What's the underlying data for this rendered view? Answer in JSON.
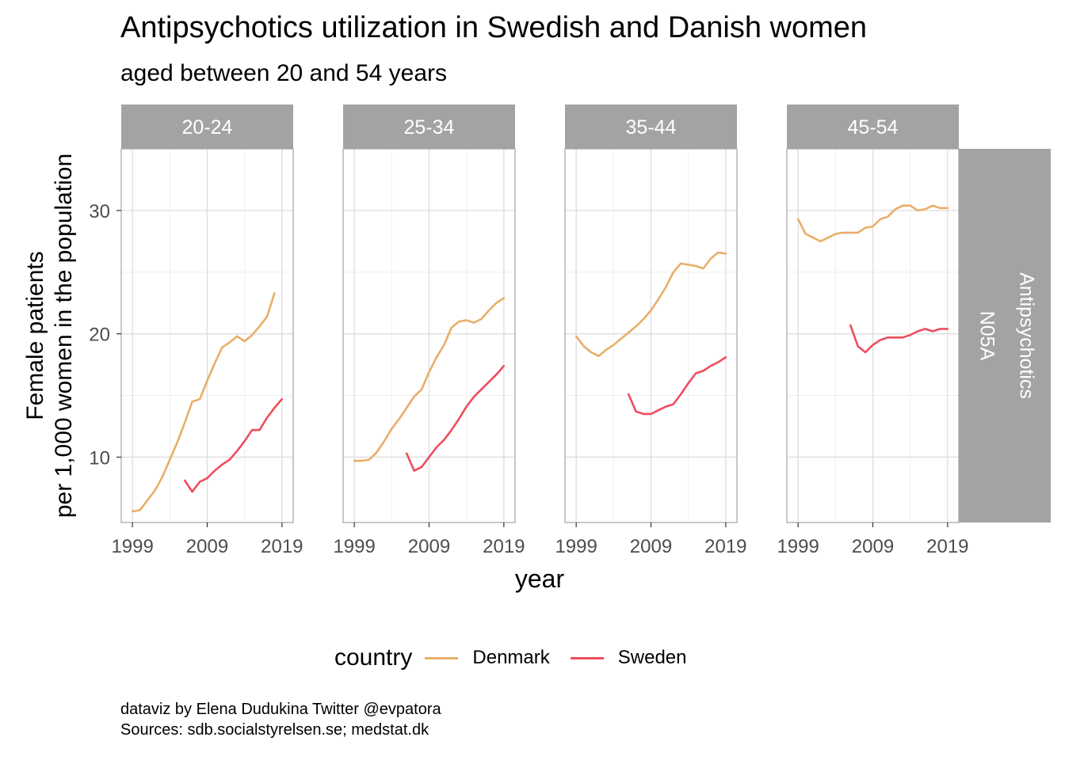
{
  "title": "Antipsychotics utilization in Swedish and Danish women",
  "subtitle": "aged between 20 and 54 years",
  "caption": {
    "line1": "dataviz by Elena Dudukina Twitter @evpatora",
    "line2": "Sources: sdb.socialstyrelsen.se; medstat.dk"
  },
  "legend": {
    "title": "country",
    "items": [
      {
        "label": "Denmark",
        "color": "#E8AE68"
      },
      {
        "label": "Sweden",
        "color": "#EF4D5E"
      }
    ]
  },
  "chart_data": {
    "type": "line",
    "xlabel": "year",
    "ylabel": [
      "Female patients",
      "per 1,000 women in the population"
    ],
    "xlim": [
      1997.5,
      2020.5
    ],
    "ylim": [
      4.7,
      35
    ],
    "xticks": [
      1999,
      2009,
      2019
    ],
    "yticks": [
      10,
      20,
      30
    ],
    "grid": true,
    "strip_right": [
      "Antipsychotics",
      "N05A"
    ],
    "strip_fill": "#A3A3A3",
    "legend_position": "bottom",
    "panels": [
      {
        "label": "20-24",
        "series": [
          {
            "name": "Denmark",
            "x": [
              1999,
              2000,
              2001,
              2002,
              2003,
              2004,
              2005,
              2006,
              2007,
              2008,
              2009,
              2010,
              2011,
              2012,
              2013,
              2014,
              2015,
              2016,
              2017,
              2018,
              2019
            ],
            "y": [
              5.6,
              5.7,
              6.5,
              7.3,
              8.4,
              9.8,
              11.2,
              12.8,
              14.5,
              14.7,
              16.2,
              17.6,
              18.9,
              19.3,
              19.8,
              19.4,
              19.9,
              20.6,
              21.4,
              23.3,
              null
            ]
          },
          {
            "name": "Sweden",
            "x": [
              2006,
              2007,
              2008,
              2009,
              2010,
              2011,
              2012,
              2013,
              2014,
              2015,
              2016,
              2017,
              2018,
              2019
            ],
            "y": [
              8.1,
              7.2,
              8.0,
              8.3,
              8.9,
              9.4,
              9.8,
              10.5,
              11.3,
              12.2,
              12.2,
              13.2,
              14.0,
              14.7
            ]
          }
        ]
      },
      {
        "label": "25-34",
        "series": [
          {
            "name": "Denmark",
            "x": [
              1999,
              2000,
              2001,
              2002,
              2003,
              2004,
              2005,
              2006,
              2007,
              2008,
              2009,
              2010,
              2011,
              2012,
              2013,
              2014,
              2015,
              2016,
              2017,
              2018,
              2019
            ],
            "y": [
              9.7,
              9.7,
              9.8,
              10.4,
              11.3,
              12.3,
              13.1,
              14.0,
              14.9,
              15.5,
              16.9,
              18.1,
              19.1,
              20.5,
              21.0,
              21.1,
              20.9,
              21.2,
              21.9,
              22.5,
              22.9
            ]
          },
          {
            "name": "Sweden",
            "x": [
              2006,
              2007,
              2008,
              2009,
              2010,
              2011,
              2012,
              2013,
              2014,
              2015,
              2016,
              2017,
              2018,
              2019
            ],
            "y": [
              10.3,
              8.9,
              9.2,
              10.0,
              10.8,
              11.4,
              12.2,
              13.1,
              14.1,
              14.9,
              15.5,
              16.1,
              16.7,
              17.4
            ]
          }
        ]
      },
      {
        "label": "35-44",
        "series": [
          {
            "name": "Denmark",
            "x": [
              1999,
              2000,
              2001,
              2002,
              2003,
              2004,
              2005,
              2006,
              2007,
              2008,
              2009,
              2010,
              2011,
              2012,
              2013,
              2014,
              2015,
              2016,
              2017,
              2018,
              2019
            ],
            "y": [
              19.8,
              19.0,
              18.5,
              18.2,
              18.7,
              19.1,
              19.6,
              20.1,
              20.6,
              21.2,
              21.9,
              22.8,
              23.8,
              25.0,
              25.7,
              25.6,
              25.5,
              25.3,
              26.1,
              26.6,
              26.5
            ]
          },
          {
            "name": "Sweden",
            "x": [
              2006,
              2007,
              2008,
              2009,
              2010,
              2011,
              2012,
              2013,
              2014,
              2015,
              2016,
              2017,
              2018,
              2019
            ],
            "y": [
              15.1,
              13.7,
              13.5,
              13.5,
              13.8,
              14.1,
              14.3,
              15.1,
              16.0,
              16.8,
              17.0,
              17.4,
              17.7,
              18.1
            ]
          }
        ]
      },
      {
        "label": "45-54",
        "series": [
          {
            "name": "Denmark",
            "x": [
              1999,
              2000,
              2001,
              2002,
              2003,
              2004,
              2005,
              2006,
              2007,
              2008,
              2009,
              2010,
              2011,
              2012,
              2013,
              2014,
              2015,
              2016,
              2017,
              2018,
              2019
            ],
            "y": [
              29.3,
              28.1,
              27.8,
              27.5,
              27.8,
              28.1,
              28.2,
              28.2,
              28.2,
              28.6,
              28.7,
              29.3,
              29.5,
              30.1,
              30.4,
              30.4,
              30.0,
              30.1,
              30.4,
              30.2,
              30.2
            ]
          },
          {
            "name": "Sweden",
            "x": [
              2006,
              2007,
              2008,
              2009,
              2010,
              2011,
              2012,
              2013,
              2014,
              2015,
              2016,
              2017,
              2018,
              2019
            ],
            "y": [
              20.7,
              19.0,
              18.5,
              19.1,
              19.5,
              19.7,
              19.7,
              19.7,
              19.9,
              20.2,
              20.4,
              20.2,
              20.4,
              20.4
            ]
          }
        ]
      }
    ]
  }
}
